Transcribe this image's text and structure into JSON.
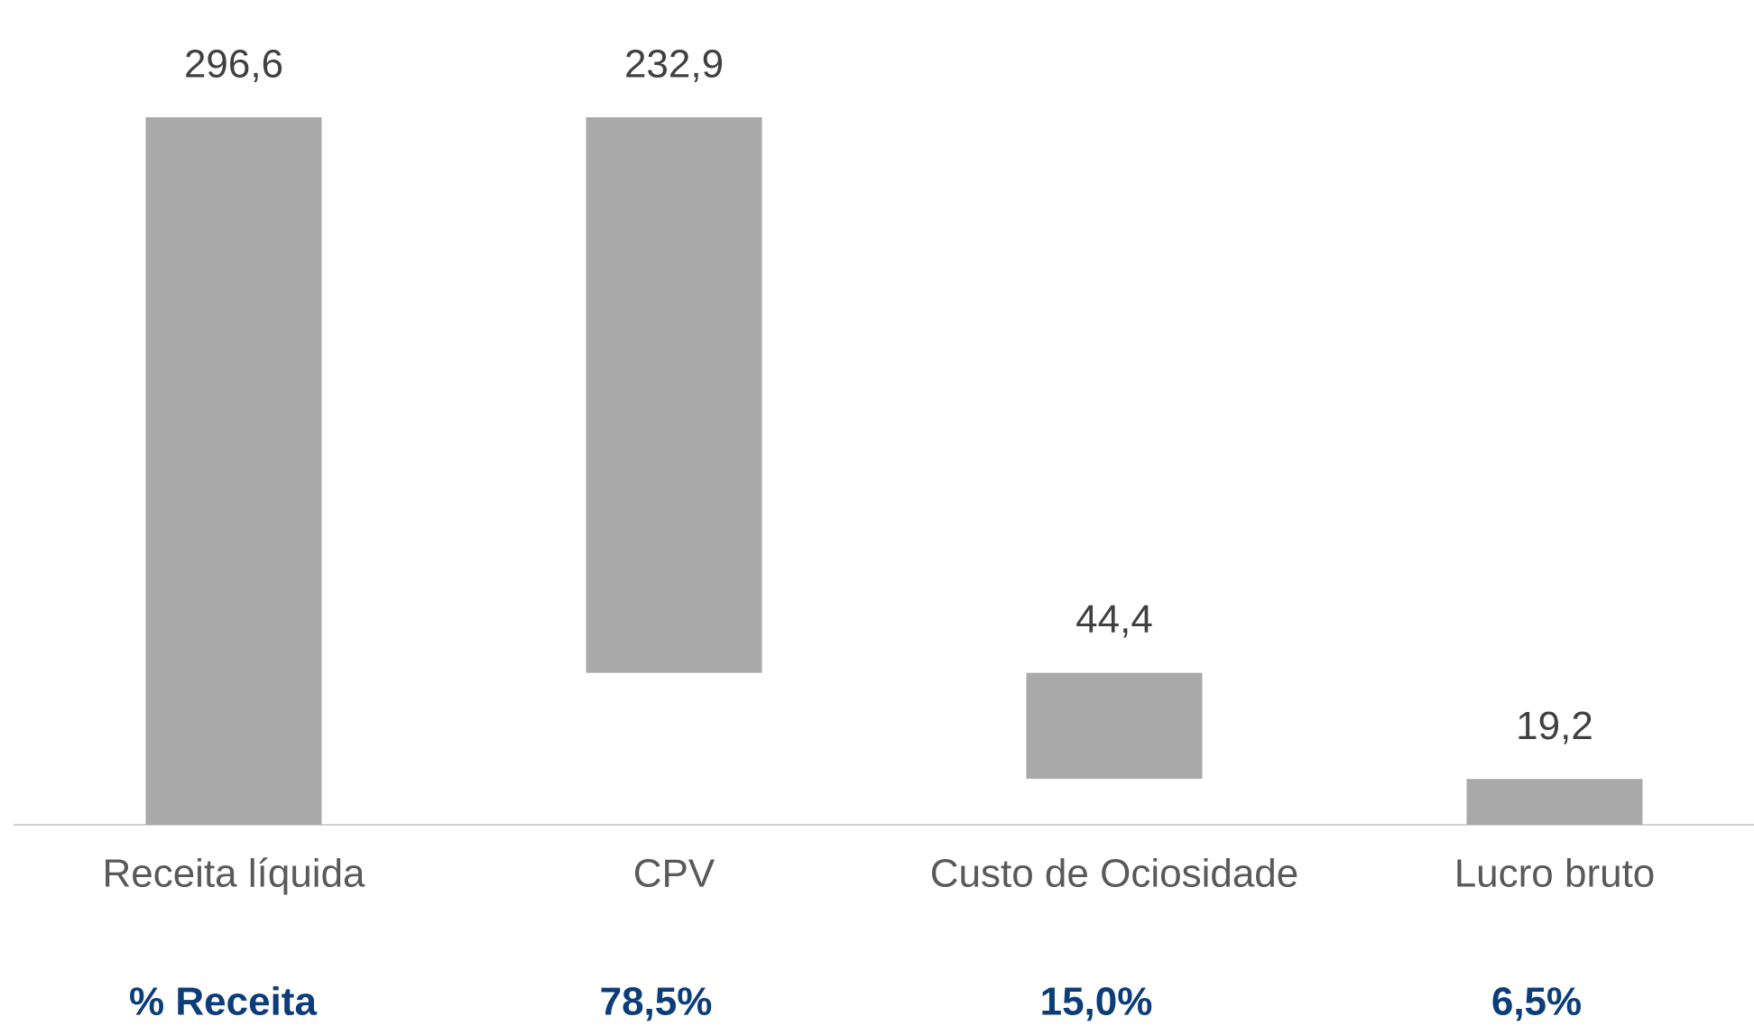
{
  "chart_data": {
    "type": "waterfall",
    "categories": [
      "Receita líquida",
      "CPV",
      "Custo de Ociosidade",
      "Lucro bruto"
    ],
    "values": [
      296.6,
      232.9,
      44.4,
      19.2
    ],
    "value_labels": [
      "296,6",
      "232,9",
      "44,4",
      "19,2"
    ],
    "measures": [
      "total",
      "decrease",
      "decrease",
      "total"
    ],
    "color": "#a9a9a9",
    "ylim": [
      0,
      300
    ],
    "percent_row": {
      "label": "% Receita",
      "values": [
        "78,5%",
        "15,0%",
        "6,5%"
      ]
    }
  }
}
